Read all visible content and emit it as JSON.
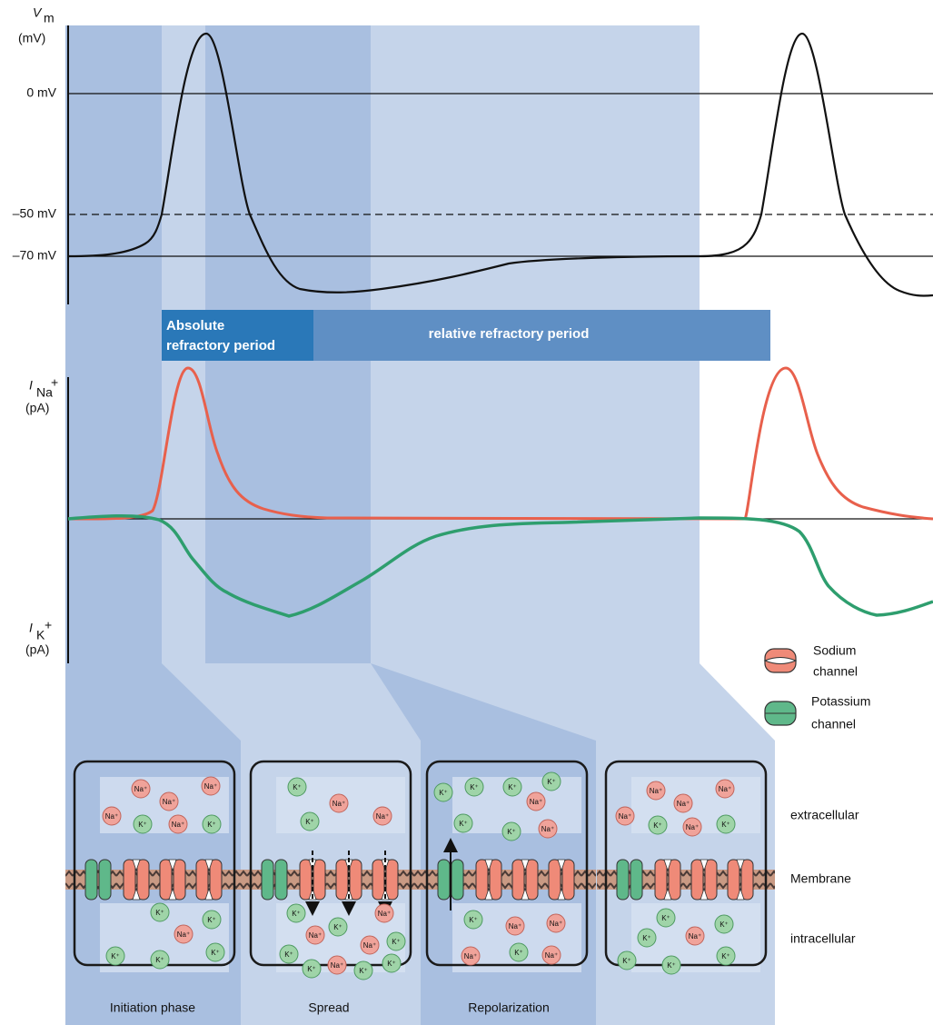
{
  "axes": {
    "voltage": {
      "symbol": "V",
      "subscript": "m",
      "unit": "(mV)",
      "ticks": [
        "0 mV",
        "–50 mV",
        "–70 mV"
      ]
    },
    "sodium_current": {
      "symbol": "I",
      "subscript": "Na",
      "superscript": "+",
      "unit": "(pA)"
    },
    "potassium_current": {
      "symbol": "I",
      "subscript": "K",
      "superscript": "+",
      "unit": "(pA)"
    }
  },
  "refractory": {
    "absolute": [
      "Absolute",
      "refractory period"
    ],
    "relative": "relative refractory period"
  },
  "legend": [
    {
      "label": [
        "Sodium",
        "channel"
      ]
    },
    {
      "label": [
        "Potassium",
        "channel"
      ]
    }
  ],
  "regions": [
    "extracellular",
    "Membrane",
    "intracellular"
  ],
  "panels": [
    {
      "label": "Initiation phase",
      "extracellular": [
        "Na⁺",
        "Na⁺",
        "Na⁺",
        "Na⁺",
        "K⁺",
        "Na⁺",
        "K⁺"
      ],
      "intracellular": [
        "K⁺",
        "K⁺",
        "Na⁺",
        "K⁺",
        "K⁺",
        "K⁺"
      ]
    },
    {
      "label": "Spread",
      "extracellular": [
        "K⁺",
        "Na⁺",
        "K⁺",
        "Na⁺"
      ],
      "intracellular": [
        "K⁺",
        "K⁺",
        "Na⁺",
        "Na⁺",
        "K⁺",
        "Na⁺",
        "K⁺",
        "K⁺",
        "Na⁺",
        "K⁺",
        "K⁺"
      ]
    },
    {
      "label": "Repolarization",
      "extracellular": [
        "K⁺",
        "K⁺",
        "K⁺",
        "Na⁺",
        "K⁺",
        "K⁺",
        "K⁺",
        "Na⁺"
      ],
      "intracellular": [
        "K⁺",
        "Na⁺",
        "Na⁺",
        "K⁺",
        "Na⁺",
        "Na⁺"
      ]
    },
    {
      "extracellular": [
        "Na⁺",
        "Na⁺",
        "Na⁺",
        "Na⁺",
        "K⁺",
        "Na⁺",
        "K⁺"
      ],
      "intracellular": [
        "K⁺",
        "K⁺",
        "Na⁺",
        "K⁺",
        "K⁺",
        "K⁺",
        "K⁺"
      ]
    }
  ]
}
